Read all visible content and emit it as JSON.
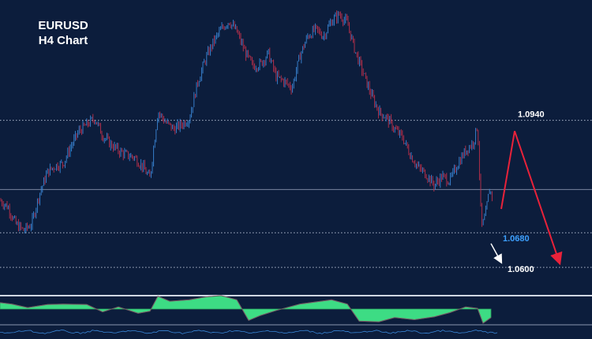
{
  "chart_data": {
    "type": "candlestick",
    "symbol": "EURUSD",
    "timeframe": "H4 Chart",
    "price_range": [
      1.054,
      1.12
    ],
    "grid": false,
    "levels": [
      {
        "price": 1.094,
        "label": "1.0940",
        "style": "dotted",
        "color": "#c8d2e6",
        "label_color": "#ffffff"
      },
      {
        "price": 1.068,
        "label": "1.0680",
        "style": "dotted",
        "color": "#c8d2e6",
        "label_color": "#3da0ff"
      },
      {
        "price": 1.06,
        "label": "1.0600",
        "style": "dotted",
        "color": "#c8d2e6",
        "label_color": "#ffffff"
      },
      {
        "price": 1.078,
        "label": "",
        "style": "solid",
        "color": "#8a96b0",
        "label_color": "#ffffff"
      }
    ],
    "price_path": [
      [
        0,
        1.0755
      ],
      [
        10,
        1.074
      ],
      [
        20,
        1.07
      ],
      [
        30,
        1.0685
      ],
      [
        40,
        1.07
      ],
      [
        50,
        1.077
      ],
      [
        60,
        1.082
      ],
      [
        70,
        1.0835
      ],
      [
        80,
        1.084
      ],
      [
        90,
        1.088
      ],
      [
        100,
        1.0915
      ],
      [
        110,
        1.093
      ],
      [
        120,
        1.0945
      ],
      [
        130,
        1.0905
      ],
      [
        140,
        1.0885
      ],
      [
        150,
        1.087
      ],
      [
        160,
        1.086
      ],
      [
        170,
        1.0855
      ],
      [
        180,
        1.0835
      ],
      [
        190,
        1.0805
      ],
      [
        200,
        1.096
      ],
      [
        210,
        1.0935
      ],
      [
        220,
        1.092
      ],
      [
        230,
        1.093
      ],
      [
        240,
        1.0945
      ],
      [
        250,
        1.1025
      ],
      [
        260,
        1.108
      ],
      [
        270,
        1.112
      ],
      [
        280,
        1.115
      ],
      [
        290,
        1.117
      ],
      [
        300,
        1.1145
      ],
      [
        310,
        1.11
      ],
      [
        320,
        1.1065
      ],
      [
        330,
        1.107
      ],
      [
        340,
        1.1095
      ],
      [
        350,
        1.104
      ],
      [
        360,
        1.103
      ],
      [
        370,
        1.1015
      ],
      [
        380,
        1.109
      ],
      [
        390,
        1.1135
      ],
      [
        400,
        1.115
      ],
      [
        410,
        1.1135
      ],
      [
        420,
        1.117
      ],
      [
        430,
        1.1185
      ],
      [
        440,
        1.1165
      ],
      [
        450,
        1.11
      ],
      [
        460,
        1.105
      ],
      [
        470,
        1.1
      ],
      [
        480,
        1.096
      ],
      [
        490,
        1.0945
      ],
      [
        500,
        1.092
      ],
      [
        510,
        1.09
      ],
      [
        520,
        1.086
      ],
      [
        530,
        1.083
      ],
      [
        540,
        1.0815
      ],
      [
        550,
        1.079
      ],
      [
        560,
        1.081
      ],
      [
        570,
        1.08
      ],
      [
        580,
        1.084
      ],
      [
        590,
        1.087
      ],
      [
        600,
        1.089
      ],
      [
        605,
        1.093
      ],
      [
        610,
        1.069
      ],
      [
        615,
        1.072
      ],
      [
        620,
        1.078
      ],
      [
        625,
        1.076
      ]
    ],
    "projection": {
      "red_path": [
        [
          635,
          1.0735
        ],
        [
          652,
          1.0915
        ],
        [
          708,
          1.0615
        ]
      ],
      "white_arrow": [
        [
          622,
          1.0655
        ],
        [
          634,
          1.0615
        ]
      ]
    },
    "indicator": {
      "type": "area",
      "color": "#3ddc84",
      "values": [
        [
          0,
          0.45
        ],
        [
          15,
          0.35
        ],
        [
          35,
          0.1
        ],
        [
          60,
          0.32
        ],
        [
          80,
          0.35
        ],
        [
          110,
          0.32
        ],
        [
          130,
          -0.2
        ],
        [
          150,
          0.15
        ],
        [
          175,
          -0.3
        ],
        [
          190,
          -0.15
        ],
        [
          200,
          0.9
        ],
        [
          215,
          0.55
        ],
        [
          240,
          0.65
        ],
        [
          260,
          0.85
        ],
        [
          280,
          0.95
        ],
        [
          300,
          0.65
        ],
        [
          315,
          -0.8
        ],
        [
          330,
          -0.45
        ],
        [
          350,
          -0.1
        ],
        [
          380,
          0.35
        ],
        [
          400,
          0.5
        ],
        [
          420,
          0.65
        ],
        [
          440,
          0.35
        ],
        [
          455,
          -0.85
        ],
        [
          480,
          -0.9
        ],
        [
          500,
          -0.6
        ],
        [
          525,
          -0.75
        ],
        [
          550,
          -0.55
        ],
        [
          570,
          -0.25
        ],
        [
          590,
          0.15
        ],
        [
          605,
          0.05
        ],
        [
          612,
          -1.0
        ],
        [
          622,
          -0.6
        ]
      ]
    }
  }
}
